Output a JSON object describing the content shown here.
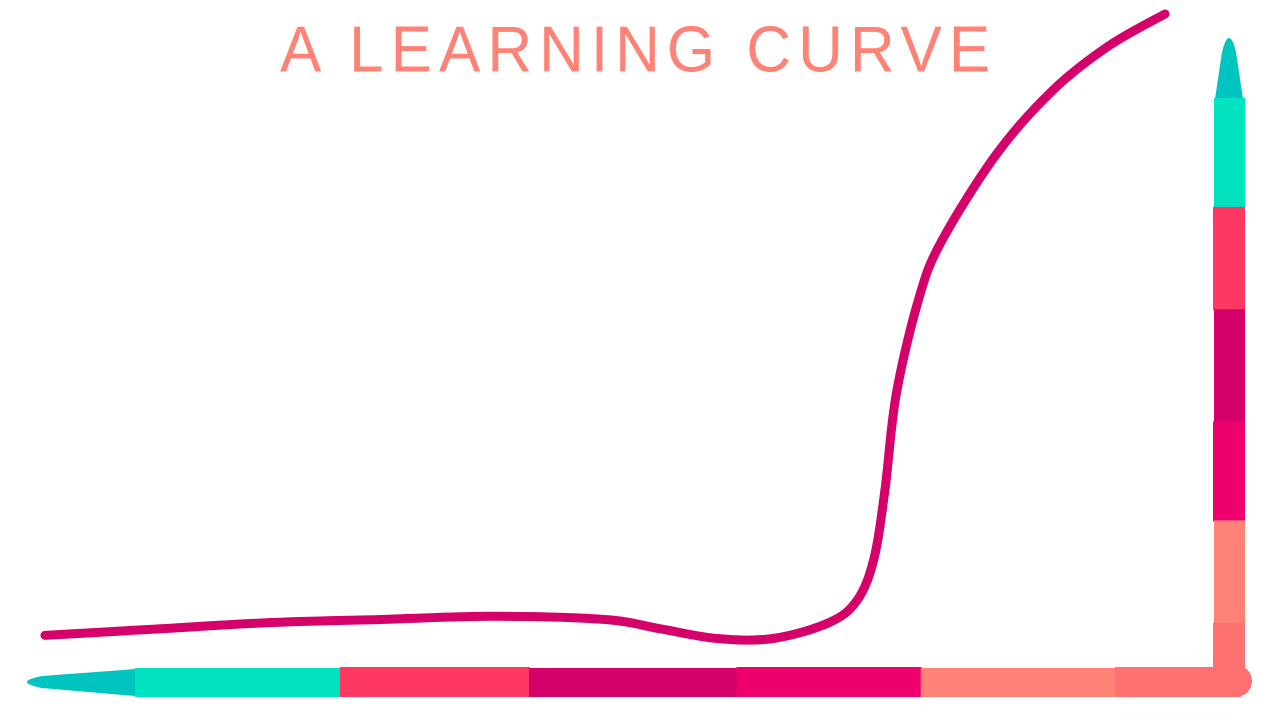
{
  "chart_data": {
    "type": "line",
    "title": "A LEARNING CURVE",
    "xlabel": "",
    "ylabel": "",
    "grid": false,
    "legend": "none",
    "xlim": [
      0,
      100
    ],
    "ylim": [
      0,
      100
    ],
    "series": [
      {
        "color": "#d6006a",
        "x": [
          0,
          10,
          20,
          30,
          40,
          50,
          55,
          60,
          65,
          70,
          72.5,
          74,
          75,
          76,
          78,
          80,
          85,
          90,
          95,
          100
        ],
        "y": [
          2,
          3,
          4,
          4.5,
          5,
          4.5,
          3,
          1.5,
          1.5,
          4,
          7.5,
          14,
          25,
          40,
          55,
          64,
          78,
          88,
          95,
          100
        ]
      }
    ],
    "axis_colors": {
      "x_axis": [
        "#00c4bf",
        "#00e2c0",
        "#ff3862",
        "#d6006a",
        "#ef006f",
        "#ff8277",
        "#ff7070"
      ],
      "y_axis": [
        "#00c4bf",
        "#00e2c0",
        "#ff3862",
        "#d6006a",
        "#ef006f",
        "#ff8277",
        "#ff7070"
      ]
    }
  }
}
